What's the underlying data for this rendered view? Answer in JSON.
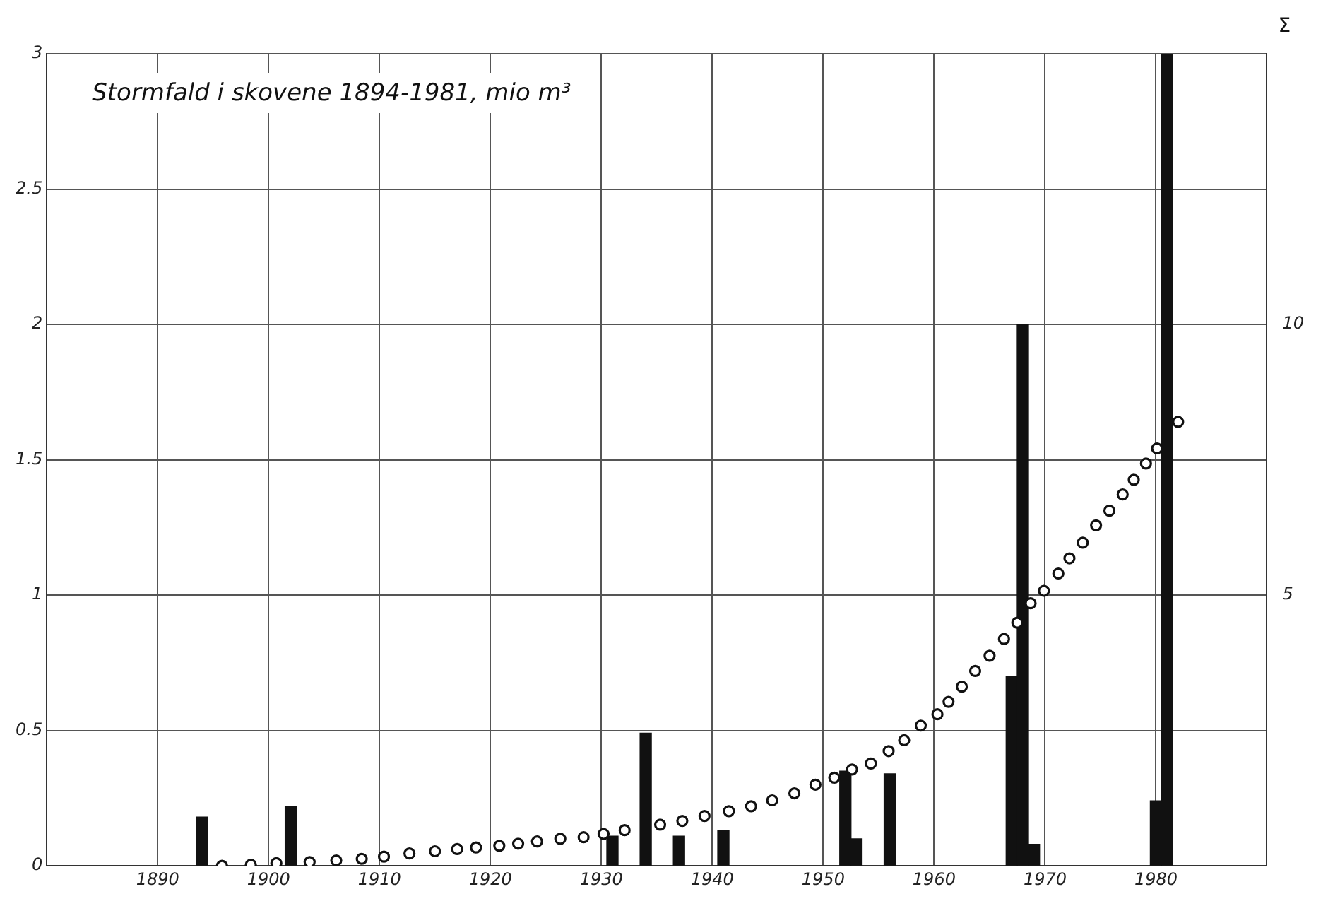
{
  "chart_data": {
    "type": "bar",
    "title": "Stormfald i skovene 1894-1981, mio m³",
    "y2label": "Σ",
    "xlim": [
      1880,
      1990
    ],
    "xticks": [
      1890,
      1900,
      1910,
      1920,
      1930,
      1940,
      1950,
      1960,
      1970,
      1980
    ],
    "ylim": [
      0,
      3
    ],
    "yticks": [
      0,
      0.5,
      1,
      1.5,
      2,
      2.5,
      3
    ],
    "y2lim": [
      0,
      15
    ],
    "y2ticks": [
      5,
      10
    ],
    "grid": true,
    "marker": "circle",
    "series": [
      {
        "color": "#111111",
        "x": [
          1894,
          1902,
          1931,
          1934,
          1937,
          1941,
          1952,
          1953,
          1956,
          1967,
          1968,
          1969,
          1980,
          1981
        ],
        "values": [
          0.18,
          0.22,
          0.11,
          0.49,
          0.11,
          0.13,
          0.35,
          0.1,
          0.34,
          0.7,
          2.0,
          0.08,
          0.24,
          3.0
        ]
      },
      {
        "type": "scatter",
        "axis": "y2",
        "color": "#111111",
        "x": [
          1895.8,
          1898.4,
          1900.7,
          1903.7,
          1906.1,
          1908.4,
          1910.4,
          1912.7,
          1915,
          1917,
          1918.7,
          1920.8,
          1922.5,
          1924.2,
          1926.3,
          1928.4,
          1930.2,
          1932.1,
          1935.3,
          1937.3,
          1939.3,
          1941.5,
          1943.5,
          1945.4,
          1947.4,
          1949.3,
          1951,
          1952.6,
          1954.3,
          1955.9,
          1957.3,
          1958.8,
          1960.3,
          1961.3,
          1962.5,
          1963.7,
          1965,
          1966.3,
          1967.5,
          1968.7,
          1969.9,
          1971.2,
          1972.2,
          1973.4,
          1974.6,
          1975.8,
          1977,
          1978,
          1979.1,
          1980.1,
          1982
        ],
        "values": [
          0,
          0.02,
          0.05,
          0.07,
          0.1,
          0.13,
          0.17,
          0.23,
          0.27,
          0.31,
          0.34,
          0.37,
          0.41,
          0.45,
          0.5,
          0.53,
          0.59,
          0.66,
          0.76,
          0.83,
          0.92,
          1.01,
          1.1,
          1.21,
          1.34,
          1.5,
          1.63,
          1.78,
          1.89,
          2.12,
          2.32,
          2.59,
          2.8,
          3.03,
          3.31,
          3.6,
          3.88,
          4.19,
          4.49,
          4.85,
          5.08,
          5.4,
          5.68,
          5.97,
          6.29,
          6.56,
          6.86,
          7.13,
          7.43,
          7.71,
          8.2
        ]
      }
    ]
  }
}
